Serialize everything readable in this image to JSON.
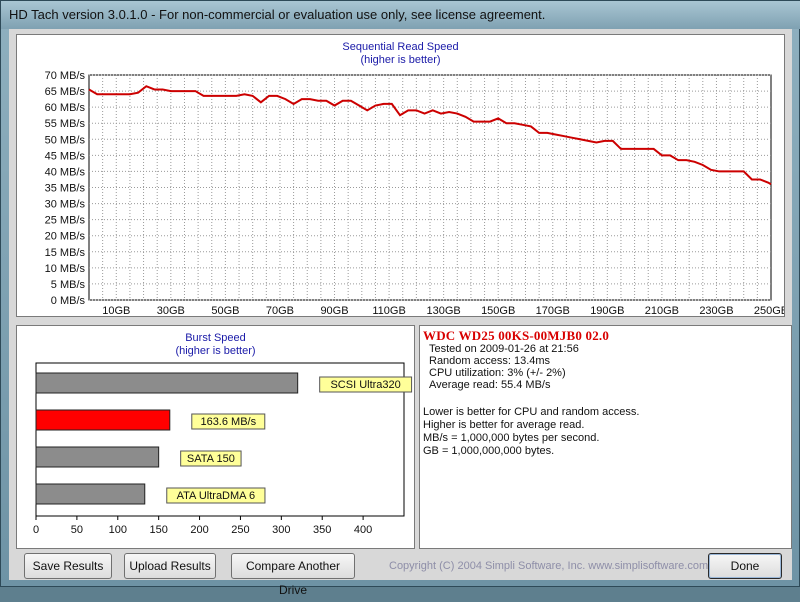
{
  "window": {
    "title": "HD Tach version 3.0.1.0  - For non-commercial or evaluation use only, see license agreement."
  },
  "sequential_chart": {
    "title": "Sequential Read Speed",
    "subtitle": "(higher is better)",
    "y_ticks": [
      "0 MB/s",
      "5 MB/s",
      "10 MB/s",
      "15 MB/s",
      "20 MB/s",
      "25 MB/s",
      "30 MB/s",
      "35 MB/s",
      "40 MB/s",
      "45 MB/s",
      "50 MB/s",
      "55 MB/s",
      "60 MB/s",
      "65 MB/s",
      "70 MB/s"
    ],
    "x_ticks": [
      "10GB",
      "30GB",
      "50GB",
      "70GB",
      "90GB",
      "110GB",
      "130GB",
      "150GB",
      "170GB",
      "190GB",
      "210GB",
      "230GB",
      "250GB"
    ],
    "line_color": "#cc0000"
  },
  "burst_chart": {
    "title": "Burst Speed",
    "subtitle": "(higher is better)",
    "x_ticks": [
      "0",
      "50",
      "100",
      "150",
      "200",
      "250",
      "300",
      "350",
      "400"
    ],
    "bars": [
      {
        "label": "SCSI Ultra320",
        "value": 320,
        "color": "#8c8c8c"
      },
      {
        "label": "163.6 MB/s",
        "value": 163.6,
        "color": "#ff0000"
      },
      {
        "label": "SATA 150",
        "value": 150,
        "color": "#8c8c8c"
      },
      {
        "label": "ATA UltraDMA 6",
        "value": 133,
        "color": "#8c8c8c"
      }
    ]
  },
  "chart_data": [
    {
      "type": "line",
      "title": "Sequential Read Speed",
      "subtitle": "(higher is better)",
      "xlabel": "",
      "ylabel": "",
      "xlim": [
        0,
        250
      ],
      "ylim": [
        0,
        70
      ],
      "grid": true,
      "series": [
        {
          "x": [
            0,
            3,
            6,
            9,
            12,
            15,
            18,
            21,
            24,
            27,
            30,
            33,
            36,
            39,
            42,
            45,
            48,
            51,
            54,
            57,
            60,
            63,
            66,
            69,
            72,
            75,
            78,
            81,
            84,
            87,
            90,
            93,
            96,
            99,
            102,
            105,
            108,
            111,
            114,
            117,
            120,
            123,
            126,
            129,
            132,
            135,
            138,
            141,
            144,
            147,
            150,
            153,
            156,
            159,
            162,
            165,
            168,
            171,
            174,
            177,
            180,
            183,
            186,
            189,
            192,
            195,
            198,
            201,
            204,
            207,
            210,
            213,
            216,
            219,
            222,
            225,
            228,
            231,
            234,
            237,
            240,
            243,
            246,
            249,
            252
          ],
          "y": [
            65.5,
            64,
            64,
            64,
            64,
            64,
            64.5,
            66.5,
            65.5,
            65.5,
            65,
            65,
            65,
            65,
            63.5,
            63.5,
            63.5,
            63.5,
            63.5,
            64,
            63.5,
            61.5,
            63.5,
            63.5,
            62.5,
            61,
            62.5,
            62.5,
            62,
            62,
            60.5,
            62,
            62,
            60.5,
            59,
            60.5,
            61,
            61,
            57.5,
            59,
            59,
            58,
            59,
            58,
            58.5,
            58,
            57,
            55.5,
            55.5,
            55.5,
            56.5,
            55,
            55,
            54.5,
            54,
            52,
            52,
            51.5,
            51,
            50.5,
            50,
            49.5,
            49,
            49.5,
            49.5,
            47,
            47,
            47,
            47,
            47,
            45,
            45,
            43.5,
            43.5,
            43,
            42,
            40.5,
            40,
            40,
            40,
            40,
            37.5,
            37.5,
            36.5,
            36
          ]
        }
      ]
    },
    {
      "type": "bar",
      "title": "Burst Speed",
      "subtitle": "(higher is better)",
      "orientation": "horizontal",
      "categories": [
        "SCSI Ultra320",
        "163.6 MB/s",
        "SATA 150",
        "ATA UltraDMA 6"
      ],
      "values": [
        320,
        163.6,
        150,
        133
      ],
      "xlim": [
        0,
        450
      ]
    }
  ],
  "info": {
    "drive_name": "WDC WD25 00KS-00MJB0 02.0",
    "tested_on": "Tested on 2009-01-26 at 21:56",
    "random_access": "Random access: 13.4ms",
    "cpu_utilization": "CPU utilization: 3% (+/- 2%)",
    "average_read": "Average read: 55.4 MB/s",
    "notes": [
      "Lower is better for CPU and random access.",
      "Higher is better for average read.",
      "MB/s = 1,000,000 bytes per second.",
      "GB = 1,000,000,000 bytes."
    ]
  },
  "buttons": {
    "save": "Save Results",
    "upload": "Upload Results",
    "compare": "Compare Another Drive",
    "done": "Done"
  },
  "copyright": "Copyright (C) 2004 Simpli Software, Inc. www.simplisoftware.com"
}
